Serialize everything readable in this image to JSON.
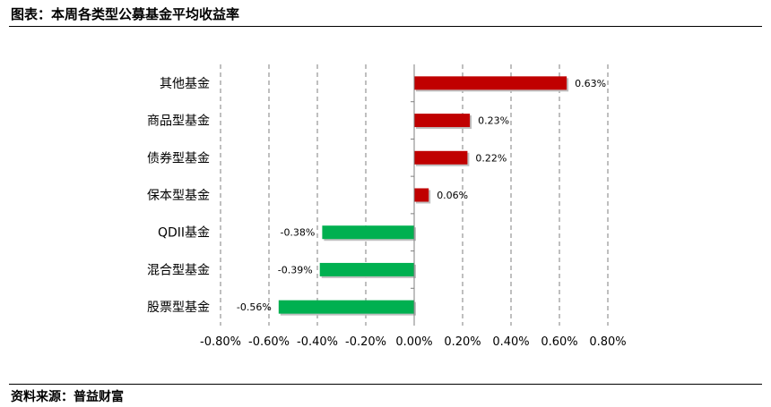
{
  "header": {
    "title": "图表：本周各类型公募基金平均收益率"
  },
  "footer": {
    "source": "资料来源：普益财富"
  },
  "chart_data": {
    "type": "bar",
    "orientation": "horizontal",
    "categories": [
      "其他基金",
      "商品型基金",
      "债券型基金",
      "保本型基金",
      "QDII基金",
      "混合型基金",
      "股票型基金"
    ],
    "values": [
      0.63,
      0.23,
      0.22,
      0.06,
      -0.38,
      -0.39,
      -0.56
    ],
    "value_labels": [
      "0.63%",
      "0.23%",
      "0.22%",
      "0.06%",
      "-0.38%",
      "-0.39%",
      "-0.56%"
    ],
    "xlim": [
      -0.8,
      0.8
    ],
    "xticks": [
      -0.8,
      -0.6,
      -0.4,
      -0.2,
      0.0,
      0.2,
      0.4,
      0.6,
      0.8
    ],
    "xtick_labels": [
      "-0.80%",
      "-0.60%",
      "-0.40%",
      "-0.20%",
      "0.00%",
      "0.20%",
      "0.40%",
      "0.60%",
      "0.80%"
    ],
    "grid": "vertical-dashed",
    "colors": {
      "positive": "#c00000",
      "negative": "#00b050",
      "grid": "#7f7f7f"
    }
  }
}
